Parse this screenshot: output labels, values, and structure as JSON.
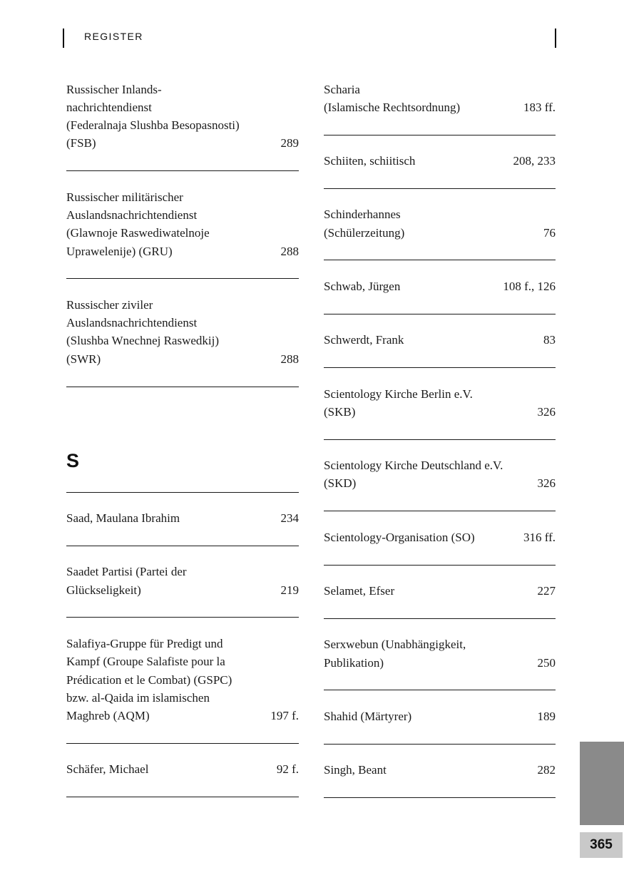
{
  "header": {
    "title": "REGISTER"
  },
  "page_tab": {
    "number": "365",
    "tab_color": "#8a8a8a",
    "badge_bg": "#c9c9c9"
  },
  "columns": {
    "left": [
      {
        "type": "entry",
        "lines": [
          "Russischer Inlands-",
          "nachrichtendienst",
          "(Federalnaja Slushba Besopasnosti)",
          "(FSB)"
        ],
        "pages": "289"
      },
      {
        "type": "entry",
        "lines": [
          "Russischer militärischer",
          "Auslandsnachrichtendienst",
          "(Glawnoje Raswediwatelnoje",
          "Uprawelenije) (GRU)"
        ],
        "pages": "288"
      },
      {
        "type": "entry",
        "lines": [
          "Russischer ziviler",
          "Auslandsnachrichtendienst",
          "(Slushba Wnechnej Raswedkij)",
          "(SWR)"
        ],
        "pages": "288"
      },
      {
        "type": "section",
        "letter": "S"
      },
      {
        "type": "entry",
        "lines": [
          "Saad, Maulana Ibrahim"
        ],
        "pages": "234"
      },
      {
        "type": "entry",
        "lines": [
          "Saadet Partisi (Partei der",
          "Glückseligkeit)"
        ],
        "pages": "219"
      },
      {
        "type": "entry",
        "lines": [
          "Salafiya-Gruppe für Predigt und",
          "Kampf (Groupe Salafiste pour la",
          "Prédication et le Combat) (GSPC)",
          "bzw. al-Qaida im islamischen",
          "Maghreb (AQM)"
        ],
        "pages": "197 f."
      },
      {
        "type": "entry",
        "lines": [
          "Schäfer, Michael"
        ],
        "pages": "92 f."
      }
    ],
    "right": [
      {
        "type": "entry",
        "lines": [
          "Scharia",
          "(Islamische Rechtsordnung)"
        ],
        "pages": "183 ff."
      },
      {
        "type": "entry",
        "lines": [
          "Schiiten, schiitisch"
        ],
        "pages": "208, 233"
      },
      {
        "type": "entry",
        "lines": [
          "Schinderhannes",
          "(Schülerzeitung)"
        ],
        "pages": "76"
      },
      {
        "type": "entry",
        "lines": [
          "Schwab, Jürgen"
        ],
        "pages": "108 f., 126"
      },
      {
        "type": "entry",
        "lines": [
          "Schwerdt, Frank"
        ],
        "pages": "83"
      },
      {
        "type": "entry",
        "lines": [
          "Scientology Kirche Berlin e.V.",
          "(SKB)"
        ],
        "pages": "326"
      },
      {
        "type": "entry",
        "lines": [
          "Scientology Kirche Deutschland e.V.",
          "(SKD)"
        ],
        "pages": "326"
      },
      {
        "type": "entry",
        "lines": [
          "Scientology-Organisation (SO)"
        ],
        "pages": "316 ff."
      },
      {
        "type": "entry",
        "lines": [
          "Selamet, Efser"
        ],
        "pages": "227"
      },
      {
        "type": "entry",
        "lines": [
          "Serxwebun (Unabhängigkeit,",
          "Publikation)"
        ],
        "pages": "250"
      },
      {
        "type": "entry",
        "lines": [
          "Shahid (Märtyrer)"
        ],
        "pages": "189"
      },
      {
        "type": "entry",
        "lines": [
          "Singh, Beant"
        ],
        "pages": "282"
      }
    ]
  }
}
